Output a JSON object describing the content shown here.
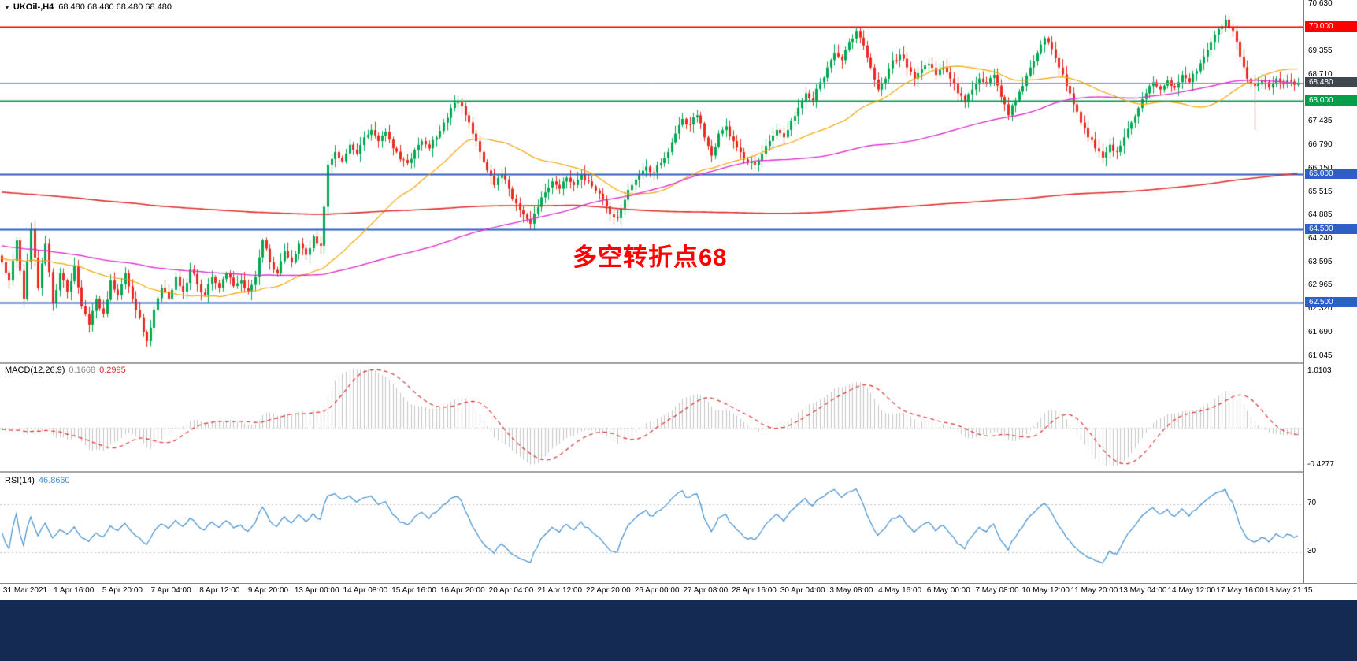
{
  "window": {
    "symbol_name": "UKOil-,H4",
    "ohlc_readout": "68.480 68.480 68.480 68.480"
  },
  "icons": {
    "dropdown": "▼"
  },
  "annotation": {
    "text": "多空转折点68",
    "color": "#ff0000"
  },
  "macd": {
    "name": "MACD(12,26,9)",
    "main_value": "0.1668",
    "signal_value": "0.2995",
    "axis_top": "1.0103",
    "axis_bottom": "-0.4277"
  },
  "rsi": {
    "name": "RSI(14)",
    "value": "46.8660",
    "levels": [
      "70",
      "30"
    ]
  },
  "price_axis": {
    "labels": [
      "70.630",
      "69.355",
      "68.710",
      "67.435",
      "66.790",
      "66.150",
      "65.515",
      "64.885",
      "64.240",
      "63.595",
      "62.965",
      "62.320",
      "61.690",
      "61.045"
    ],
    "tags": [
      {
        "text": "70.000",
        "price": 70.0,
        "bg": "#ff0000"
      },
      {
        "text": "68.480",
        "price": 68.48,
        "bg": "#40474f"
      },
      {
        "text": "68.000",
        "price": 68.0,
        "bg": "#00a04a"
      },
      {
        "text": "66.000",
        "price": 66.0,
        "bg": "#2f5fc4"
      },
      {
        "text": "64.500",
        "price": 64.5,
        "bg": "#2f5fc4"
      },
      {
        "text": "62.500",
        "price": 62.5,
        "bg": "#2f5fc4"
      }
    ]
  },
  "levels": [
    {
      "price": 70.0,
      "color": "#ff0000",
      "width": 2
    },
    {
      "price": 68.48,
      "color": "#7d8ea3",
      "width": 1
    },
    {
      "price": 68.0,
      "color": "#00a04a",
      "width": 2
    },
    {
      "price": 66.0,
      "color": "#2f5fc4",
      "width": 2
    },
    {
      "price": 64.5,
      "color": "#2f5fc4",
      "width": 2
    },
    {
      "price": 62.5,
      "color": "#2f5fc4",
      "width": 2
    }
  ],
  "time_axis": {
    "labels": [
      "31 Mar 2021",
      "1 Apr 16:00",
      "5 Apr 20:00",
      "7 Apr 04:00",
      "8 Apr 12:00",
      "9 Apr 20:00",
      "13 Apr 00:00",
      "14 Apr 08:00",
      "15 Apr 16:00",
      "16 Apr 20:00",
      "20 Apr 04:00",
      "21 Apr 12:00",
      "22 Apr 20:00",
      "26 Apr 00:00",
      "27 Apr 08:00",
      "28 Apr 16:00",
      "30 Apr 04:00",
      "3 May 08:00",
      "4 May 16:00",
      "6 May 00:00",
      "7 May 08:00",
      "10 May 12:00",
      "11 May 20:00",
      "13 May 04:00",
      "14 May 12:00",
      "17 May 16:00",
      "18 May 21:15"
    ]
  },
  "colors": {
    "candle_up": "#00a750",
    "candle_down": "#ea2a1f",
    "macd_hist": "#c4c4c4",
    "macd_signal": "#e03030",
    "rsi_line": "#3e8ed0",
    "rsi_level": "#c0c0c0"
  },
  "chart_data": {
    "type": "candlestick",
    "symbol": "UKOil-,H4",
    "price_range": [
      60.87,
      70.74
    ],
    "closes": [
      63.6,
      63.1,
      64.2,
      62.6,
      64.5,
      62.9,
      64.1,
      62.5,
      63.3,
      62.8,
      63.5,
      62.4,
      61.9,
      62.6,
      62.2,
      63.1,
      62.7,
      63.3,
      62.6,
      62.1,
      61.45,
      62.3,
      62.9,
      62.6,
      63.2,
      62.8,
      63.4,
      63.0,
      62.7,
      63.2,
      62.9,
      63.3,
      62.95,
      63.1,
      62.8,
      63.2,
      64.2,
      63.6,
      63.3,
      63.9,
      63.6,
      64.1,
      63.8,
      64.3,
      64.05,
      66.25,
      66.6,
      66.35,
      66.8,
      66.55,
      67.0,
      67.2,
      66.9,
      67.15,
      66.7,
      66.4,
      66.3,
      66.65,
      66.9,
      66.7,
      67.0,
      67.4,
      67.8,
      67.95,
      67.6,
      67.1,
      66.6,
      66.1,
      65.7,
      66.0,
      65.6,
      65.2,
      64.9,
      64.65,
      65.1,
      65.5,
      65.8,
      65.6,
      65.9,
      65.7,
      66.0,
      65.8,
      65.55,
      65.3,
      64.9,
      64.8,
      65.3,
      65.7,
      66.0,
      66.2,
      66.05,
      66.3,
      66.6,
      67.1,
      67.5,
      67.35,
      67.6,
      67.0,
      66.5,
      67.1,
      67.3,
      66.9,
      66.6,
      66.3,
      66.25,
      66.55,
      66.9,
      67.2,
      67.0,
      67.45,
      67.8,
      68.2,
      68.0,
      68.5,
      68.9,
      69.3,
      69.1,
      69.6,
      69.9,
      69.5,
      68.9,
      68.3,
      68.6,
      69.1,
      69.25,
      68.9,
      68.6,
      68.85,
      69.0,
      68.7,
      68.9,
      68.6,
      68.2,
      67.95,
      68.3,
      68.6,
      68.45,
      68.7,
      68.1,
      67.6,
      68.0,
      68.4,
      68.9,
      69.3,
      69.7,
      69.4,
      68.9,
      68.4,
      67.9,
      67.4,
      67.0,
      66.7,
      66.45,
      66.8,
      66.6,
      67.0,
      67.4,
      67.8,
      68.2,
      68.5,
      68.3,
      68.55,
      68.35,
      68.7,
      68.5,
      68.8,
      69.2,
      69.6,
      69.95,
      70.2,
      69.9,
      69.2,
      68.6,
      68.4,
      68.55,
      68.35,
      68.6,
      68.45,
      68.52,
      68.48
    ],
    "wick_overrides": {
      "12": {
        "low": 61.68
      },
      "20": {
        "low": 61.3
      },
      "118": {
        "high": 69.98
      },
      "169": {
        "high": 70.33
      },
      "173": {
        "low": 67.2
      }
    },
    "warmup": {
      "bars": 260,
      "path": [
        [
          0,
          69.0
        ],
        [
          80,
          66.2
        ],
        [
          200,
          63.8
        ],
        [
          259,
          63.6
        ]
      ]
    },
    "moving_averages": [
      {
        "name": "MA-fast",
        "color": "#f5a300",
        "period": 40,
        "line_width": 1.2
      },
      {
        "name": "MA-mid",
        "color": "#dd33cc",
        "period": 120,
        "line_width": 1.4
      },
      {
        "name": "MA-slow",
        "color": "#e03030",
        "period": 420,
        "line_width": 1.6
      }
    ],
    "macd_params": [
      12,
      26,
      9
    ],
    "rsi_period": 14,
    "rsi_level_values": [
      70,
      30
    ]
  }
}
